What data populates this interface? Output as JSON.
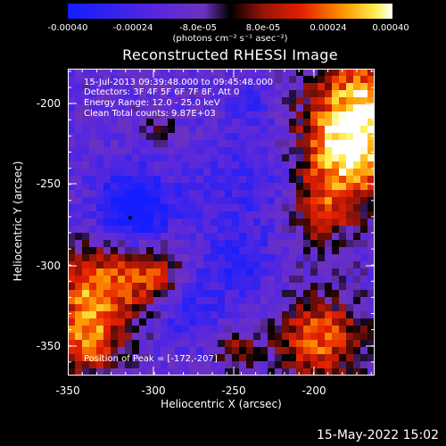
{
  "colorbar": {
    "ticks": [
      "-0.00040",
      "-0.00024",
      "-8.0e-05",
      "8.0e-05",
      "0.00024",
      "0.00040"
    ],
    "unit": "(photons cm⁻² s⁻¹ asec⁻²)"
  },
  "title": "Reconstructed RHESSI Image",
  "info": {
    "time": "15-Jul-2013 09:39:48.000 to 09:45:48.000",
    "detectors": "Detectors: 3F 4F 5F 6F 7F 8F, Att 0",
    "energy": "Energy Range: 12.0 - 25.0 keV",
    "clean": "Clean     Total counts: 9.87E+03"
  },
  "peak_label": "Position of Peak = [-172,-207]",
  "axes": {
    "x_ticks": [
      "-350",
      "-300",
      "-250",
      "-200"
    ],
    "y_ticks": [
      "-200",
      "-250",
      "-300",
      "-350"
    ],
    "xlabel": "Heliocentric X (arcsec)",
    "ylabel": "Heliocentric Y (arcsec)"
  },
  "footer": "15-May-2022 15:02",
  "colors": {
    "background": "#000000",
    "axis": "#ffffff"
  }
}
